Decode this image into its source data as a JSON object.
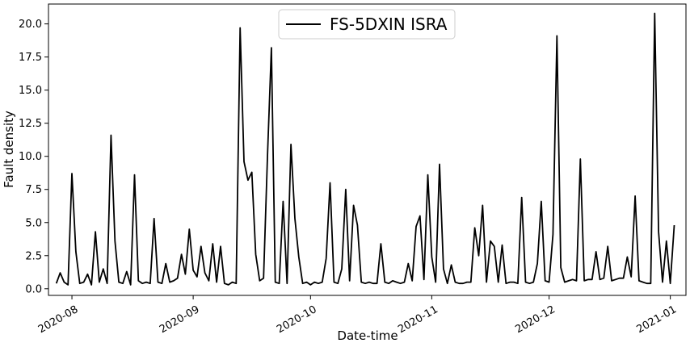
{
  "chart_data": {
    "type": "line",
    "title": "",
    "xlabel": "Date-time",
    "ylabel": "Fault density",
    "xlim": [
      "2020-07-26",
      "2021-01-05"
    ],
    "ylim": [
      -0.5,
      21.5
    ],
    "x_ticks": [
      "2020-08",
      "2020-09",
      "2020-10",
      "2020-11",
      "2020-12",
      "2021-01"
    ],
    "x_tick_dates": [
      "2020-08-01",
      "2020-09-01",
      "2020-10-01",
      "2020-11-01",
      "2020-12-01",
      "2021-01-01"
    ],
    "y_ticks": [
      "0.0",
      "2.5",
      "5.0",
      "7.5",
      "10.0",
      "12.5",
      "15.0",
      "17.5",
      "20.0"
    ],
    "y_tick_values": [
      0,
      2.5,
      5,
      7.5,
      10,
      12.5,
      15,
      17.5,
      20
    ],
    "grid": false,
    "legend_position": "top-center",
    "line_color": "#000000",
    "series": [
      {
        "name": "FS-5DXIN ISRA",
        "points": [
          [
            "2020-07-28",
            0.4
          ],
          [
            "2020-07-29",
            1.2
          ],
          [
            "2020-07-30",
            0.5
          ],
          [
            "2020-07-31",
            0.3
          ],
          [
            "2020-08-01",
            8.7
          ],
          [
            "2020-08-02",
            2.8
          ],
          [
            "2020-08-03",
            0.4
          ],
          [
            "2020-08-04",
            0.5
          ],
          [
            "2020-08-05",
            1.1
          ],
          [
            "2020-08-06",
            0.3
          ],
          [
            "2020-08-07",
            4.3
          ],
          [
            "2020-08-08",
            0.5
          ],
          [
            "2020-08-09",
            1.5
          ],
          [
            "2020-08-10",
            0.4
          ],
          [
            "2020-08-11",
            11.6
          ],
          [
            "2020-08-12",
            3.6
          ],
          [
            "2020-08-13",
            0.5
          ],
          [
            "2020-08-14",
            0.4
          ],
          [
            "2020-08-15",
            1.3
          ],
          [
            "2020-08-16",
            0.3
          ],
          [
            "2020-08-17",
            8.6
          ],
          [
            "2020-08-18",
            0.6
          ],
          [
            "2020-08-19",
            0.4
          ],
          [
            "2020-08-20",
            0.5
          ],
          [
            "2020-08-21",
            0.4
          ],
          [
            "2020-08-22",
            5.3
          ],
          [
            "2020-08-23",
            0.5
          ],
          [
            "2020-08-24",
            0.4
          ],
          [
            "2020-08-25",
            1.9
          ],
          [
            "2020-08-26",
            0.5
          ],
          [
            "2020-08-27",
            0.6
          ],
          [
            "2020-08-28",
            0.8
          ],
          [
            "2020-08-29",
            2.6
          ],
          [
            "2020-08-30",
            1.1
          ],
          [
            "2020-08-31",
            4.5
          ],
          [
            "2020-09-01",
            1.4
          ],
          [
            "2020-09-02",
            0.9
          ],
          [
            "2020-09-03",
            3.2
          ],
          [
            "2020-09-04",
            1.2
          ],
          [
            "2020-09-05",
            0.6
          ],
          [
            "2020-09-06",
            3.4
          ],
          [
            "2020-09-07",
            0.5
          ],
          [
            "2020-09-08",
            3.2
          ],
          [
            "2020-09-09",
            0.4
          ],
          [
            "2020-09-10",
            0.3
          ],
          [
            "2020-09-11",
            0.5
          ],
          [
            "2020-09-12",
            0.4
          ],
          [
            "2020-09-13",
            19.7
          ],
          [
            "2020-09-14",
            9.6
          ],
          [
            "2020-09-15",
            8.2
          ],
          [
            "2020-09-16",
            8.8
          ],
          [
            "2020-09-17",
            2.6
          ],
          [
            "2020-09-18",
            0.6
          ],
          [
            "2020-09-19",
            0.8
          ],
          [
            "2020-09-20",
            10.1
          ],
          [
            "2020-09-21",
            18.2
          ],
          [
            "2020-09-22",
            0.5
          ],
          [
            "2020-09-23",
            0.4
          ],
          [
            "2020-09-24",
            6.6
          ],
          [
            "2020-09-25",
            0.4
          ],
          [
            "2020-09-26",
            10.9
          ],
          [
            "2020-09-27",
            5.3
          ],
          [
            "2020-09-28",
            2.4
          ],
          [
            "2020-09-29",
            0.4
          ],
          [
            "2020-09-30",
            0.5
          ],
          [
            "2020-10-01",
            0.3
          ],
          [
            "2020-10-02",
            0.5
          ],
          [
            "2020-10-03",
            0.4
          ],
          [
            "2020-10-04",
            0.5
          ],
          [
            "2020-10-05",
            2.3
          ],
          [
            "2020-10-06",
            8.0
          ],
          [
            "2020-10-07",
            0.5
          ],
          [
            "2020-10-08",
            0.4
          ],
          [
            "2020-10-09",
            1.5
          ],
          [
            "2020-10-10",
            7.5
          ],
          [
            "2020-10-11",
            0.6
          ],
          [
            "2020-10-12",
            6.3
          ],
          [
            "2020-10-13",
            4.8
          ],
          [
            "2020-10-14",
            0.5
          ],
          [
            "2020-10-15",
            0.4
          ],
          [
            "2020-10-16",
            0.5
          ],
          [
            "2020-10-17",
            0.4
          ],
          [
            "2020-10-18",
            0.4
          ],
          [
            "2020-10-19",
            3.4
          ],
          [
            "2020-10-20",
            0.5
          ],
          [
            "2020-10-21",
            0.4
          ],
          [
            "2020-10-22",
            0.6
          ],
          [
            "2020-10-23",
            0.5
          ],
          [
            "2020-10-24",
            0.4
          ],
          [
            "2020-10-25",
            0.5
          ],
          [
            "2020-10-26",
            1.9
          ],
          [
            "2020-10-27",
            0.6
          ],
          [
            "2020-10-28",
            4.7
          ],
          [
            "2020-10-29",
            5.5
          ],
          [
            "2020-10-30",
            0.7
          ],
          [
            "2020-10-31",
            8.6
          ],
          [
            "2020-11-01",
            2.4
          ],
          [
            "2020-11-02",
            0.5
          ],
          [
            "2020-11-03",
            9.4
          ],
          [
            "2020-11-04",
            1.5
          ],
          [
            "2020-11-05",
            0.4
          ],
          [
            "2020-11-06",
            1.8
          ],
          [
            "2020-11-07",
            0.5
          ],
          [
            "2020-11-08",
            0.4
          ],
          [
            "2020-11-09",
            0.4
          ],
          [
            "2020-11-10",
            0.5
          ],
          [
            "2020-11-11",
            0.5
          ],
          [
            "2020-11-12",
            4.6
          ],
          [
            "2020-11-13",
            2.5
          ],
          [
            "2020-11-14",
            6.3
          ],
          [
            "2020-11-15",
            0.5
          ],
          [
            "2020-11-16",
            3.6
          ],
          [
            "2020-11-17",
            3.2
          ],
          [
            "2020-11-18",
            0.5
          ],
          [
            "2020-11-19",
            3.3
          ],
          [
            "2020-11-20",
            0.4
          ],
          [
            "2020-11-21",
            0.5
          ],
          [
            "2020-11-22",
            0.5
          ],
          [
            "2020-11-23",
            0.4
          ],
          [
            "2020-11-24",
            6.9
          ],
          [
            "2020-11-25",
            0.5
          ],
          [
            "2020-11-26",
            0.4
          ],
          [
            "2020-11-27",
            0.5
          ],
          [
            "2020-11-28",
            1.9
          ],
          [
            "2020-11-29",
            6.6
          ],
          [
            "2020-11-30",
            0.6
          ],
          [
            "2020-12-01",
            0.5
          ],
          [
            "2020-12-02",
            4.1
          ],
          [
            "2020-12-03",
            19.1
          ],
          [
            "2020-12-04",
            1.6
          ],
          [
            "2020-12-05",
            0.5
          ],
          [
            "2020-12-06",
            0.6
          ],
          [
            "2020-12-07",
            0.7
          ],
          [
            "2020-12-08",
            0.6
          ],
          [
            "2020-12-09",
            9.8
          ],
          [
            "2020-12-10",
            0.6
          ],
          [
            "2020-12-11",
            0.7
          ],
          [
            "2020-12-12",
            0.7
          ],
          [
            "2020-12-13",
            2.8
          ],
          [
            "2020-12-14",
            0.7
          ],
          [
            "2020-12-15",
            0.8
          ],
          [
            "2020-12-16",
            3.2
          ],
          [
            "2020-12-17",
            0.6
          ],
          [
            "2020-12-18",
            0.7
          ],
          [
            "2020-12-19",
            0.8
          ],
          [
            "2020-12-20",
            0.8
          ],
          [
            "2020-12-21",
            2.4
          ],
          [
            "2020-12-22",
            0.9
          ],
          [
            "2020-12-23",
            7.0
          ],
          [
            "2020-12-24",
            0.6
          ],
          [
            "2020-12-25",
            0.5
          ],
          [
            "2020-12-26",
            0.4
          ],
          [
            "2020-12-27",
            0.4
          ],
          [
            "2020-12-28",
            20.8
          ],
          [
            "2020-12-29",
            4.3
          ],
          [
            "2020-12-30",
            0.5
          ],
          [
            "2020-12-31",
            3.6
          ],
          [
            "2021-01-01",
            0.4
          ],
          [
            "2021-01-02",
            4.8
          ]
        ]
      }
    ]
  }
}
